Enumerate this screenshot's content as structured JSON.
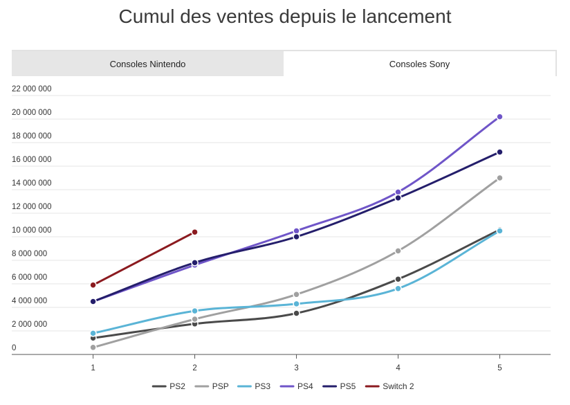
{
  "title": "Cumul des ventes depuis le lancement",
  "tabs": [
    {
      "label": "Consoles Nintendo",
      "active": false
    },
    {
      "label": "Consoles Sony",
      "active": true
    }
  ],
  "chart_data": {
    "type": "line",
    "x": [
      1,
      2,
      3,
      4,
      5
    ],
    "xlim": [
      0.2,
      5.5
    ],
    "ylim": [
      0,
      22000000
    ],
    "yticks": [
      0,
      2000000,
      4000000,
      6000000,
      8000000,
      10000000,
      12000000,
      14000000,
      16000000,
      18000000,
      20000000,
      22000000
    ],
    "ytick_labels": [
      "0",
      "2 000 000",
      "4 000 000",
      "6 000 000",
      "8 000 000",
      "10 000 000",
      "12 000 000",
      "14 000 000",
      "16 000 000",
      "18 000 000",
      "20 000 000",
      "22 000 000"
    ],
    "xtick_labels": [
      "1",
      "2",
      "3",
      "4",
      "5"
    ],
    "grid": true,
    "legend": "bottom",
    "series": [
      {
        "name": "PS2",
        "color": "#4a4a4a",
        "values": [
          1400000,
          2600000,
          3500000,
          6400000,
          10600000
        ]
      },
      {
        "name": "PSP",
        "color": "#a0a0a0",
        "values": [
          600000,
          3000000,
          5100000,
          8800000,
          15000000
        ]
      },
      {
        "name": "PS3",
        "color": "#5ab4d6",
        "values": [
          1800000,
          3700000,
          4300000,
          5600000,
          10500000
        ]
      },
      {
        "name": "PS4",
        "color": "#6f55c8",
        "values": [
          4500000,
          7600000,
          10500000,
          13800000,
          20200000
        ]
      },
      {
        "name": "PS5",
        "color": "#241e6b",
        "values": [
          4500000,
          7800000,
          10000000,
          13300000,
          17200000
        ]
      },
      {
        "name": "Switch 2",
        "color": "#8b1a1f",
        "values": [
          5900000,
          10400000,
          null,
          null,
          null
        ]
      }
    ]
  }
}
